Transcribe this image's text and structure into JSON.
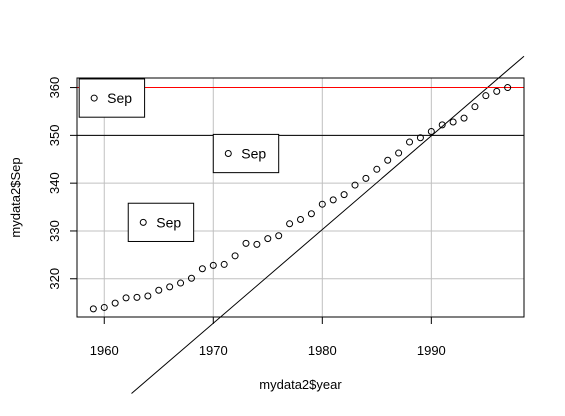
{
  "chart_data": {
    "type": "scatter",
    "title": "",
    "xlabel": "mydata2$year",
    "ylabel": "mydata2$Sep",
    "xlim": [
      1957.5,
      1998.5
    ],
    "ylim": [
      312,
      362
    ],
    "x_ticks": [
      1960,
      1970,
      1980,
      1990
    ],
    "y_ticks": [
      320,
      330,
      340,
      350,
      360
    ],
    "grid": true,
    "grid_color": "#c0c0c0",
    "series": [
      {
        "marker": "open-circle",
        "x": [
          1959,
          1960,
          1961,
          1962,
          1963,
          1964,
          1965,
          1966,
          1967,
          1968,
          1969,
          1970,
          1971,
          1972,
          1973,
          1974,
          1975,
          1976,
          1977,
          1978,
          1979,
          1980,
          1981,
          1982,
          1983,
          1984,
          1985,
          1986,
          1987,
          1988,
          1989,
          1990,
          1991,
          1992,
          1993,
          1994,
          1995,
          1996,
          1997
        ],
        "y": [
          313.7,
          314.0,
          314.9,
          316.0,
          316.1,
          316.4,
          317.6,
          318.3,
          319.1,
          320.1,
          322.1,
          322.8,
          323.0,
          324.8,
          327.4,
          327.2,
          328.4,
          329.0,
          331.5,
          332.4,
          333.6,
          335.6,
          336.5,
          337.6,
          339.6,
          341.0,
          342.9,
          344.8,
          346.3,
          348.6,
          349.5,
          350.8,
          352.2,
          352.8,
          353.6,
          356.0,
          358.3,
          359.2,
          360.0
        ]
      }
    ],
    "lines": [
      {
        "kind": "abline",
        "intercept": -3550.5,
        "slope": 1.96,
        "x_from": 1962.5,
        "color": "#000000"
      },
      {
        "kind": "hline",
        "y": 350,
        "color": "#000000"
      },
      {
        "kind": "hline",
        "y": 360,
        "color": "#ff0000"
      }
    ],
    "legends": [
      {
        "text": "Sep",
        "x": 1957.7,
        "y": 361.8,
        "w": 6.0,
        "h": 8.0
      },
      {
        "text": "Sep",
        "x": 1970.0,
        "y": 350.2,
        "w": 6.0,
        "h": 8.0
      },
      {
        "text": "Sep",
        "x": 1962.2,
        "y": 335.8,
        "w": 6.0,
        "h": 8.0
      }
    ]
  }
}
